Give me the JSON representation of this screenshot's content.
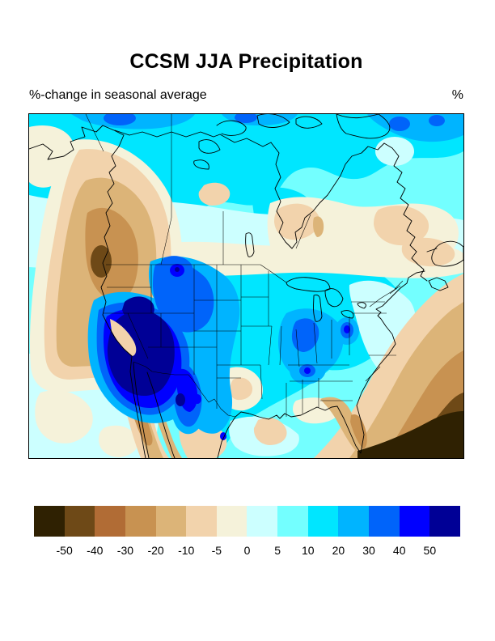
{
  "figure": {
    "title": "CCSM JJA Precipitation",
    "subtitle": "%-change in seasonal average",
    "unit_label": "%"
  },
  "colorbar": {
    "tick_labels": [
      "-50",
      "-40",
      "-30",
      "-20",
      "-10",
      "-5",
      "0",
      "5",
      "10",
      "20",
      "30",
      "40",
      "50"
    ],
    "colors": [
      "#2f2102",
      "#6e4917",
      "#b16c35",
      "#c89251",
      "#dcb478",
      "#f2d3ac",
      "#f5f2da",
      "#ccffff",
      "#73ffff",
      "#00e6ff",
      "#00b4ff",
      "#0064fa",
      "#0000ff",
      "#000096"
    ]
  },
  "chart_data": {
    "type": "heatmap",
    "subtype": "filled-contour-map",
    "title": "CCSM JJA Precipitation",
    "subtitle": "%-change in seasonal average",
    "units": "%",
    "region_shown": "North America",
    "contour_levels": [
      -50,
      -40,
      -30,
      -20,
      -10,
      -5,
      0,
      5,
      10,
      20,
      30,
      40,
      50
    ],
    "palette": [
      "#2f2102",
      "#6e4917",
      "#b16c35",
      "#c89251",
      "#dcb478",
      "#f2d3ac",
      "#f5f2da",
      "#ccffff",
      "#73ffff",
      "#00e6ff",
      "#00b4ff",
      "#0064fa",
      "#0000ff",
      "#000096"
    ],
    "legend_position": "bottom",
    "notable_regions": [
      {
        "region": "Pacific Northwest / British Columbia coast",
        "value_pct": "-30 to -40"
      },
      {
        "region": "Central California",
        "value_pct": "-30 to -40"
      },
      {
        "region": "Desert Southwest (NV/UT/AZ/NM)",
        "value_pct": "+40 to >+50"
      },
      {
        "region": "Northern Rockies / Montana",
        "value_pct": "+30 to +50"
      },
      {
        "region": "Great Plains and Midwest",
        "value_pct": "+10 to +30"
      },
      {
        "region": "Ohio Valley / Tennessee",
        "value_pct": "+30 to +40"
      },
      {
        "region": "Northern Canada / Arctic coast",
        "value_pct": "+10 to +30"
      },
      {
        "region": "Southern Canada (Prairies to Quebec)",
        "value_pct": "-5 to +5"
      },
      {
        "region": "Subtropical western Atlantic / Caribbean (SE corner)",
        "value_pct": "-40 to < -50"
      },
      {
        "region": "Florida",
        "value_pct": "-20 to -30"
      },
      {
        "region": "Gulf of Mexico",
        "value_pct": "-5 to +5"
      },
      {
        "region": "Baja California / NW Mexico coast",
        "value_pct": "-20 to -40"
      }
    ]
  }
}
